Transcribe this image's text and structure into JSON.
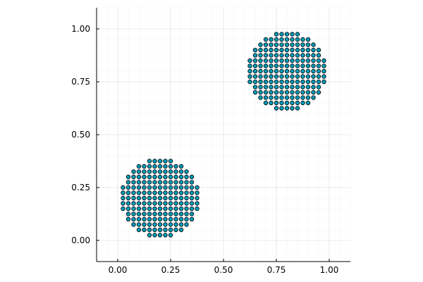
{
  "chart_data": {
    "type": "scatter",
    "title": "",
    "xlabel": "",
    "ylabel": "",
    "xlim": [
      -0.1,
      1.1
    ],
    "ylim": [
      -0.1,
      1.1
    ],
    "xticks": [
      0.0,
      0.25,
      0.5,
      0.75,
      1.0
    ],
    "yticks": [
      0.0,
      0.25,
      0.5,
      0.75,
      1.0
    ],
    "xtick_labels": [
      "0.00",
      "0.25",
      "0.50",
      "0.75",
      "1.00"
    ],
    "ytick_labels": [
      "0.00",
      "0.25",
      "0.50",
      "0.75",
      "1.00"
    ],
    "grid": true,
    "minor_grid": true,
    "legend": "none",
    "aspect": "equal",
    "marker_color": "#009AB6",
    "marker_edge_color": "#000000",
    "marker_shape": "circle",
    "series": [
      {
        "grid_step": 0.025,
        "center": [
          0.2,
          0.2
        ],
        "radius": 0.19,
        "x_min": 0.0,
        "x_max": 0.4,
        "y_min": 0.0,
        "y_max": 0.4
      },
      {
        "grid_step": 0.025,
        "center": [
          0.8,
          0.8
        ],
        "radius": 0.19,
        "x_min": 0.6,
        "x_max": 1.0,
        "y_min": 0.6,
        "y_max": 1.0
      }
    ]
  }
}
